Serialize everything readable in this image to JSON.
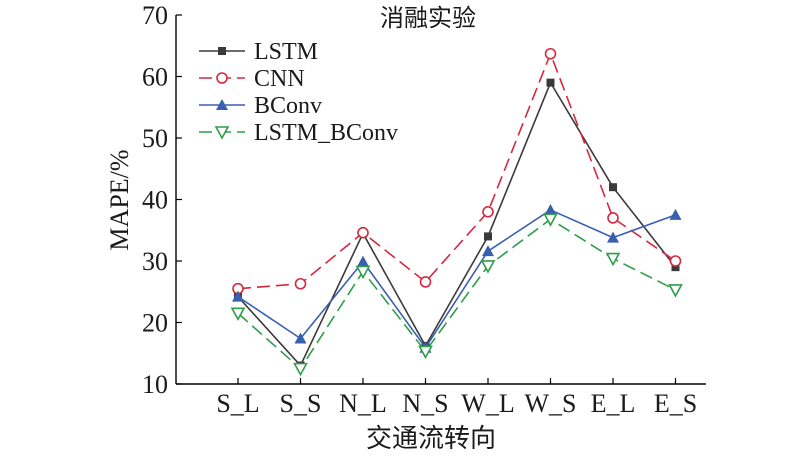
{
  "chart_data": {
    "type": "line",
    "title": "消融实验",
    "xlabel": "交通流转向",
    "ylabel": "MAPE/%",
    "categories": [
      "S_L",
      "S_S",
      "N_L",
      "N_S",
      "W_L",
      "W_S",
      "E_L",
      "E_S"
    ],
    "ylim": [
      10,
      70
    ],
    "yticks": [
      10,
      20,
      30,
      40,
      50,
      60,
      70
    ],
    "grid": false,
    "legend_position": "top-left",
    "series": [
      {
        "name": "LSTM",
        "values": [
          24.2,
          13.0,
          34.5,
          16.2,
          34.0,
          59.0,
          42.0,
          29.0
        ],
        "color": "#3a3a3a",
        "marker": "square",
        "dash": "solid"
      },
      {
        "name": "CNN",
        "values": [
          25.5,
          26.3,
          34.6,
          26.6,
          38.0,
          63.7,
          37.0,
          30.0
        ],
        "color": "#d6283f",
        "marker": "circle-open",
        "dash": "dashed"
      },
      {
        "name": "BConv",
        "values": [
          24.2,
          17.4,
          29.9,
          15.9,
          31.6,
          38.3,
          33.8,
          37.5
        ],
        "color": "#3b5fb0",
        "marker": "triangle-up",
        "dash": "solid"
      },
      {
        "name": "LSTM_BConv",
        "values": [
          21.5,
          12.5,
          28.3,
          15.3,
          29.2,
          36.8,
          30.4,
          25.3
        ],
        "color": "#2e9e4a",
        "marker": "triangle-down-open",
        "dash": "dashed"
      }
    ]
  }
}
